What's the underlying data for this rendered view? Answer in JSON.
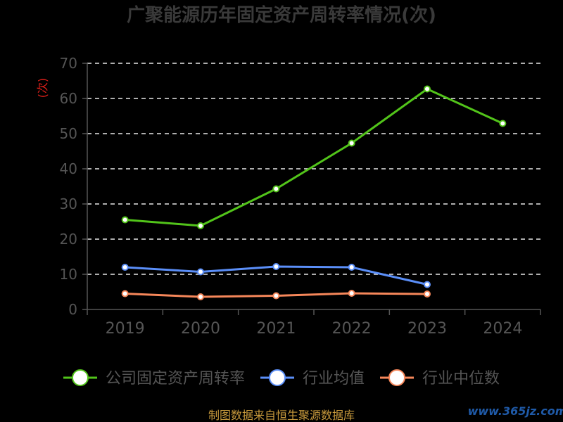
{
  "chart_data": {
    "type": "line",
    "title": "广聚能源历年固定资产周转率情况(次)",
    "ylabel": "(次)",
    "categories": [
      "2019",
      "2020",
      "2021",
      "2022",
      "2023",
      "2024"
    ],
    "ylim": [
      0,
      70
    ],
    "yticks": [
      0,
      10,
      20,
      30,
      40,
      50,
      60,
      70
    ],
    "grid": true,
    "legend_position": "bottom",
    "series": [
      {
        "name": "公司固定资产周转率",
        "color": "#52c41a",
        "values": [
          25.5,
          23.8,
          34.3,
          47.3,
          62.7,
          52.9
        ]
      },
      {
        "name": "行业均值",
        "color": "#5b8ff9",
        "values": [
          12.0,
          10.7,
          12.2,
          12.0,
          7.1,
          null
        ]
      },
      {
        "name": "行业中位数",
        "color": "#f6875a",
        "values": [
          4.5,
          3.6,
          3.9,
          4.6,
          4.4,
          null
        ]
      }
    ]
  },
  "footer": {
    "source": "制图数据来自恒生聚源数据库"
  },
  "watermark": {
    "text": "www.365jz.com"
  }
}
